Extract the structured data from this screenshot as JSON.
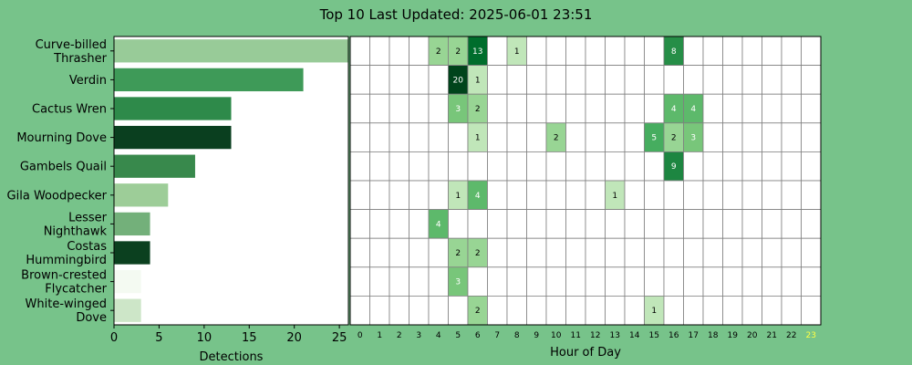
{
  "chart_data": [
    {
      "type": "bar",
      "orientation": "horizontal",
      "title": "Top 10 Last Updated: 2025-06-01 23:51",
      "categories": [
        "Curve-billed\nThrasher",
        "Verdin",
        "Cactus Wren",
        "Mourning Dove",
        "Gambels Quail",
        "Gila Woodpecker",
        "Lesser\nNighthawk",
        "Costas\nHummingbird",
        "Brown-crested\nFlycatcher",
        "White-winged\nDove"
      ],
      "values": [
        26,
        21,
        13,
        13,
        9,
        6,
        4,
        4,
        3,
        3
      ],
      "bar_colors": [
        "#98cb98",
        "#3e9a58",
        "#2e8a4a",
        "#0a3f1f",
        "#38894c",
        "#9dcd98",
        "#73b07a",
        "#0b401f",
        "#f4faf2",
        "#cde6c8"
      ],
      "xlabel": "Detections",
      "ylabel": "",
      "xlim": [
        0,
        26
      ],
      "xticks": [
        0,
        5,
        10,
        15,
        20,
        25
      ]
    },
    {
      "type": "heatmap",
      "xlabel": "Hour of Day",
      "x": [
        0,
        1,
        2,
        3,
        4,
        5,
        6,
        7,
        8,
        9,
        10,
        11,
        12,
        13,
        14,
        15,
        16,
        17,
        18,
        19,
        20,
        21,
        22,
        23
      ],
      "highlight_hour": 23,
      "highlight_color": "#ffff44",
      "rows": [
        {
          "4": 2,
          "5": 2,
          "6": 13,
          "8": 1,
          "16": 8
        },
        {
          "5": 20,
          "6": 1
        },
        {
          "5": 3,
          "6": 2,
          "16": 4,
          "17": 4
        },
        {
          "6": 1,
          "10": 2,
          "15": 5,
          "16": 2,
          "17": 3
        },
        {
          "16": 9
        },
        {
          "5": 1,
          "6": 4,
          "13": 1
        },
        {
          "4": 4
        },
        {
          "5": 2,
          "6": 2
        },
        {
          "5": 3
        },
        {
          "6": 2,
          "15": 1
        }
      ],
      "vmax": 20,
      "grid": true
    }
  ]
}
